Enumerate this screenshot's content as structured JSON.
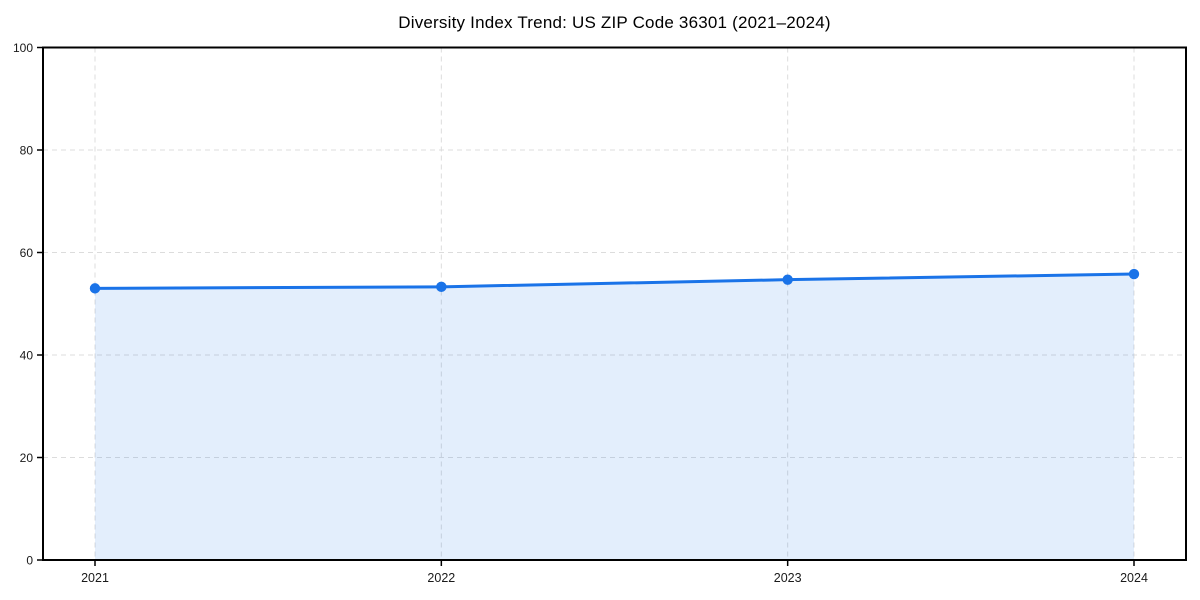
{
  "chart_data": {
    "type": "line",
    "title": "Diversity Index Trend: US ZIP Code 36301 (2021–2024)",
    "categories": [
      "2021",
      "2022",
      "2023",
      "2024"
    ],
    "series": [
      {
        "name": "Diversity Index",
        "values": [
          53.0,
          53.3,
          54.7,
          55.8
        ]
      }
    ],
    "xlabel": "",
    "ylabel": "",
    "ylim": [
      0,
      100
    ],
    "yticks": [
      0,
      20,
      40,
      60,
      80,
      100
    ],
    "grid": true,
    "grid_style": "dashed",
    "legend_position": "none",
    "area_fill": true,
    "marker": "circle",
    "colors": {
      "line": "#1a73e8",
      "marker": "#1a73e8",
      "area": "#1a73e8",
      "area_opacity": 0.12,
      "grid": "#dcdcdc",
      "axis": "#000000",
      "tick_label": "#1a1a1a",
      "title": "#000000",
      "background": "#ffffff"
    }
  }
}
